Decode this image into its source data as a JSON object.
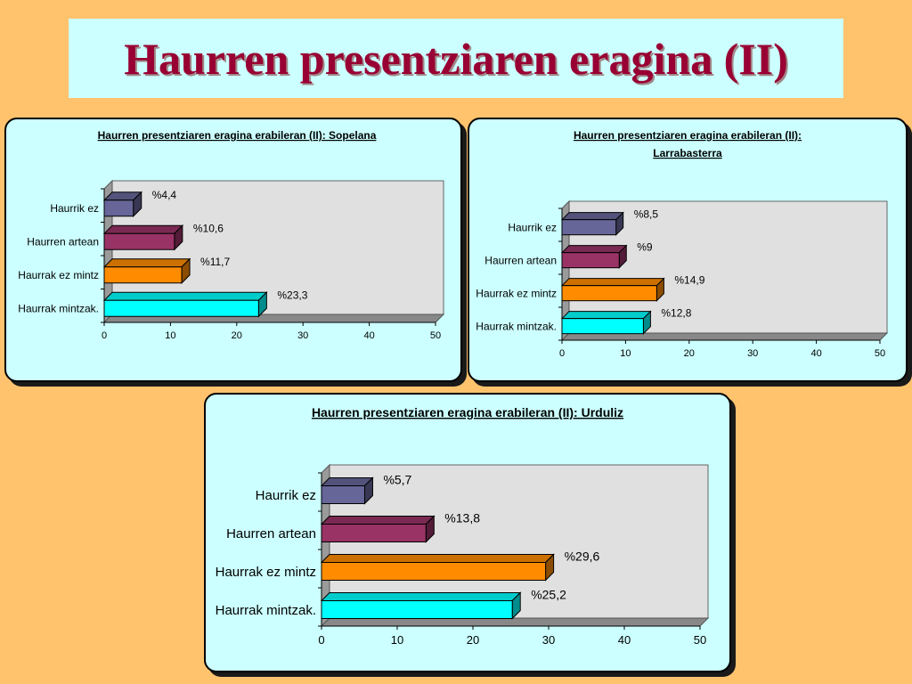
{
  "slide": {
    "title": "Haurren presentziaren eragina (II)"
  },
  "colors": {
    "background": "#FFC36E",
    "panel": "#CCFFFF",
    "title_text": "#990033",
    "bars": [
      "#666699",
      "#993366",
      "#FF8C00",
      "#00FFFF"
    ]
  },
  "chart_data": [
    {
      "type": "bar",
      "orientation": "horizontal",
      "title": "Haurren presentziaren eragina erabileran (II): Sopelana",
      "categories": [
        "Haurrik ez",
        "Haurren artean",
        "Haurrak ez mintz",
        "Haurrak mintzak."
      ],
      "values": [
        4.4,
        10.6,
        11.7,
        23.3
      ],
      "data_labels": [
        "%4,4",
        "%10,6",
        "%11,7",
        "%23,3"
      ],
      "xlim": [
        0,
        50
      ],
      "xticks": [
        "0",
        "10",
        "20",
        "30",
        "40",
        "50"
      ],
      "grid": false,
      "legend": "none"
    },
    {
      "type": "bar",
      "orientation": "horizontal",
      "title": "Haurren presentziaren eragina erabileran (II): Larrabasterra",
      "categories": [
        "Haurrik ez",
        "Haurren artean",
        "Haurrak ez mintz",
        "Haurrak mintzak."
      ],
      "values": [
        8.5,
        9,
        14.9,
        12.8
      ],
      "data_labels": [
        "%8,5",
        "%9",
        "%14,9",
        "%12,8"
      ],
      "xlim": [
        0,
        50
      ],
      "xticks": [
        "0",
        "10",
        "20",
        "30",
        "40",
        "50"
      ],
      "grid": false,
      "legend": "none"
    },
    {
      "type": "bar",
      "orientation": "horizontal",
      "title": "Haurren presentziaren eragina erabileran (II): Urduliz",
      "categories": [
        "Haurrik ez",
        "Haurren artean",
        "Haurrak ez mintz",
        "Haurrak mintzak."
      ],
      "values": [
        5.7,
        13.8,
        29.6,
        25.2
      ],
      "data_labels": [
        "%5,7",
        "%13,8",
        "%29,6",
        "%25,2"
      ],
      "xlim": [
        0,
        50
      ],
      "xticks": [
        "0",
        "10",
        "20",
        "30",
        "40",
        "50"
      ],
      "grid": false,
      "legend": "none"
    }
  ]
}
